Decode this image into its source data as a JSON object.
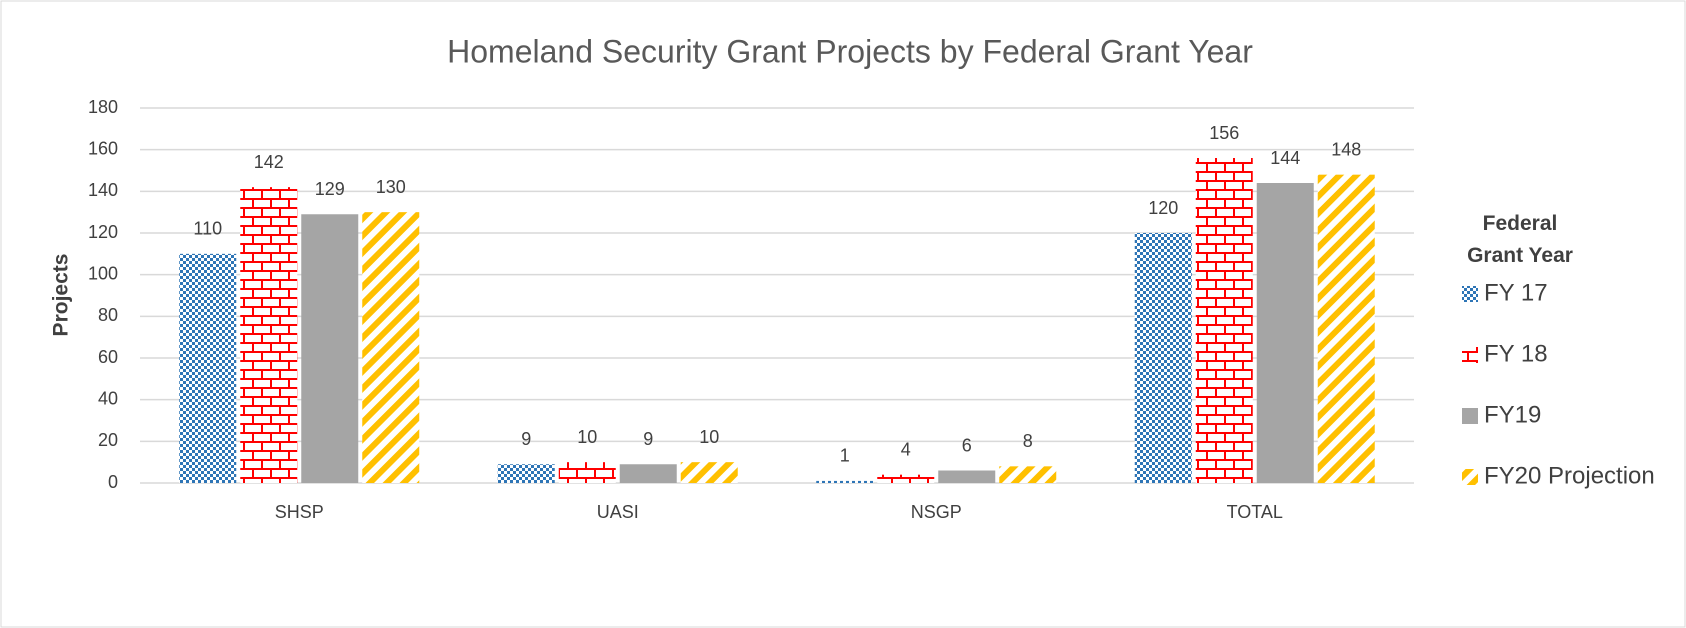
{
  "chart_data": {
    "type": "bar",
    "title": "Homeland Security Grant Projects by Federal Grant Year",
    "y_label": "Projects",
    "legend_title": "Federal Grant Year",
    "legend": "right",
    "categories": [
      "SHSP",
      "UASI",
      "NSGP",
      "TOTAL"
    ],
    "series": [
      {
        "name": "FY 17",
        "color": "#2e75b6",
        "pattern": "checker",
        "values": [
          110,
          9,
          1,
          120
        ]
      },
      {
        "name": "FY 18",
        "color": "#ff0000",
        "pattern": "brick",
        "values": [
          142,
          10,
          4,
          156
        ]
      },
      {
        "name": "FY19",
        "color": "#a5a5a5",
        "pattern": "solid",
        "values": [
          129,
          9,
          6,
          144
        ]
      },
      {
        "name": "FY20 Projection",
        "color": "#ffc000",
        "pattern": "stripes",
        "values": [
          130,
          10,
          8,
          148
        ]
      }
    ],
    "ylim": [
      0,
      180
    ],
    "yticks": [
      0,
      20,
      40,
      60,
      80,
      100,
      120,
      140,
      160,
      180
    ],
    "grid": true
  }
}
